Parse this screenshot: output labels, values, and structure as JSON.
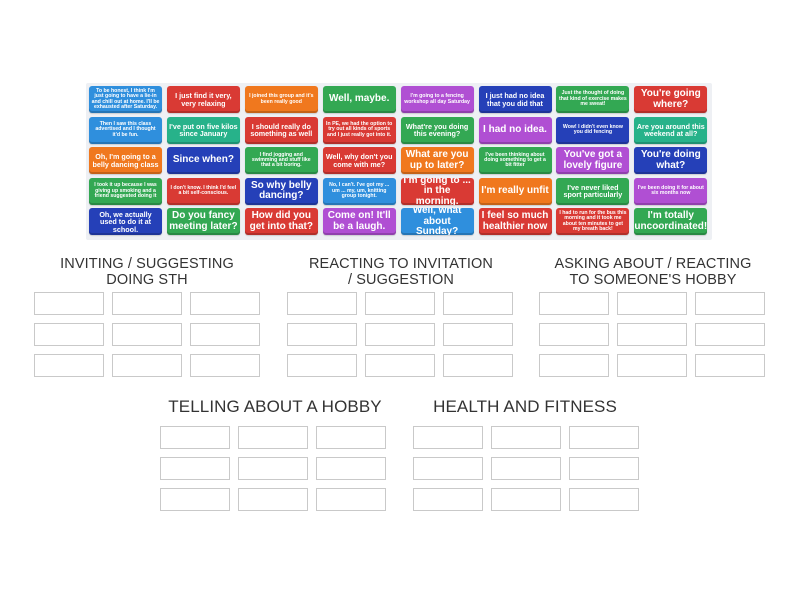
{
  "colors": {
    "blue": "#2f8fdd",
    "red": "#d93a34",
    "orange": "#f0781e",
    "green": "#33a853",
    "purple": "#b04fd3",
    "navy": "#2540b8",
    "teal": "#27b28a"
  },
  "cards": [
    {
      "text": "To be honest, I think I'm just going to have a lie-in and chill out at home. I'll be exhausted after Saturday.",
      "color": "blue",
      "size": "s"
    },
    {
      "text": "I just find it very, very relaxing",
      "color": "red",
      "size": "m"
    },
    {
      "text": "I joined this group and it's been really good",
      "color": "orange",
      "size": "s"
    },
    {
      "text": "Well, maybe.",
      "color": "green",
      "size": "l"
    },
    {
      "text": "I'm going to a fencing workshop all day Saturday",
      "color": "purple",
      "size": "s"
    },
    {
      "text": "I just had no idea that you did that",
      "color": "navy",
      "size": "m"
    },
    {
      "text": "Just the thought of doing that kind of exercise makes me sweat!",
      "color": "green",
      "size": "s"
    },
    {
      "text": "You're going where?",
      "color": "red",
      "size": "l"
    },
    {
      "text": "Then I saw this class advertised and I thought it'd be fun.",
      "color": "blue",
      "size": "s"
    },
    {
      "text": "I've put on five kilos since January",
      "color": "teal",
      "size": "m"
    },
    {
      "text": "I should really do something as well",
      "color": "red",
      "size": "m"
    },
    {
      "text": "In PE, we had the option to try out all kinds of sports and I just really got into it.",
      "color": "red",
      "size": "s"
    },
    {
      "text": "What're you doing this evening?",
      "color": "green",
      "size": "m"
    },
    {
      "text": "I had no idea.",
      "color": "purple",
      "size": "l"
    },
    {
      "text": "Wow! I didn't even know you did fencing",
      "color": "navy",
      "size": "s"
    },
    {
      "text": "Are you around this weekend at all?",
      "color": "teal",
      "size": "m"
    },
    {
      "text": "Oh, I'm going to a belly dancing class",
      "color": "orange",
      "size": "m"
    },
    {
      "text": "Since when?",
      "color": "navy",
      "size": "l"
    },
    {
      "text": "I find jogging and swimming and stuff like that a bit boring.",
      "color": "green",
      "size": "s"
    },
    {
      "text": "Well, why don't you come with me?",
      "color": "red",
      "size": "m"
    },
    {
      "text": "What are you up to later?",
      "color": "orange",
      "size": "l"
    },
    {
      "text": "I've been thinking about doing something to get a bit fitter",
      "color": "green",
      "size": "s"
    },
    {
      "text": "You've got a lovely figure",
      "color": "purple",
      "size": "l"
    },
    {
      "text": "You're doing what?",
      "color": "navy",
      "size": "l"
    },
    {
      "text": "I took it up because I was giving up smoking and a friend suggested doing it",
      "color": "green",
      "size": "s"
    },
    {
      "text": "I don't know. I think I'd feel a bit self-conscious.",
      "color": "red",
      "size": "s"
    },
    {
      "text": "So why belly dancing?",
      "color": "navy",
      "size": "l"
    },
    {
      "text": "No, I can't. I've got my ... um ... my, um, knitting group tonight.",
      "color": "blue",
      "size": "s"
    },
    {
      "text": "I'm going to ... in the morning.",
      "color": "red",
      "size": "l"
    },
    {
      "text": "I'm really unfit",
      "color": "orange",
      "size": "l"
    },
    {
      "text": "I've never liked sport particularly",
      "color": "green",
      "size": "m"
    },
    {
      "text": "I've been doing it for about six months now",
      "color": "purple",
      "size": "s"
    },
    {
      "text": "Oh, we actually used to do it at school.",
      "color": "navy",
      "size": "m"
    },
    {
      "text": "Do you fancy meeting later?",
      "color": "green",
      "size": "l"
    },
    {
      "text": "How did you get into that?",
      "color": "red",
      "size": "l"
    },
    {
      "text": "Come on! It'll be a laugh.",
      "color": "purple",
      "size": "l"
    },
    {
      "text": "Well, what about Sunday?",
      "color": "blue",
      "size": "l"
    },
    {
      "text": "I feel so much healthier now",
      "color": "red",
      "size": "l"
    },
    {
      "text": "I had to run for the bus this morning and it took me about ten minutes to get my breath back!",
      "color": "red",
      "size": "s"
    },
    {
      "text": "I'm totally uncoordinated!",
      "color": "green",
      "size": "l"
    }
  ],
  "categories": [
    {
      "line1": "INVITING / SUGGESTING",
      "line2": "DOING STH"
    },
    {
      "line1": "REACTING TO INVITATION",
      "line2": "/ SUGGESTION"
    },
    {
      "line1": "ASKING ABOUT / REACTING",
      "line2": "TO SOMEONE'S HOBBY"
    },
    {
      "line1": "TELLING ABOUT A HOBBY",
      "line2": ""
    },
    {
      "line1": "HEALTH AND FITNESS",
      "line2": ""
    }
  ]
}
